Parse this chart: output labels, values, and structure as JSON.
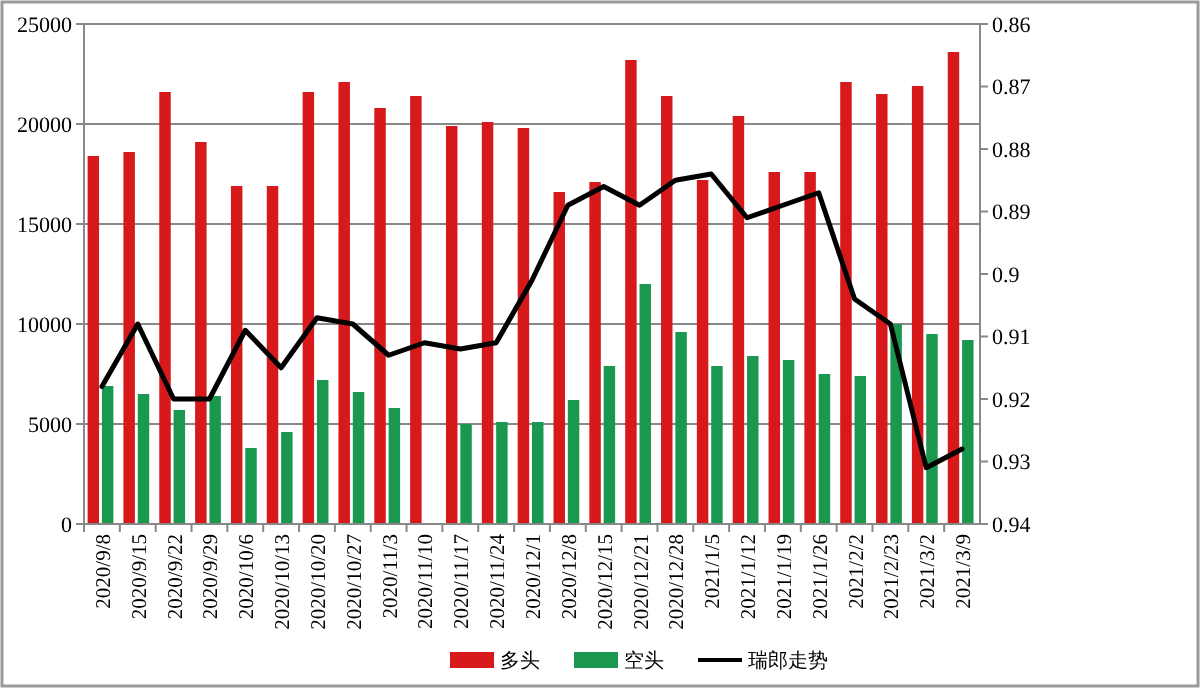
{
  "chart_data": {
    "type": "bar",
    "categories": [
      "2020/9/8",
      "2020/9/15",
      "2020/9/22",
      "2020/9/29",
      "2020/10/6",
      "2020/10/13",
      "2020/10/20",
      "2020/10/27",
      "2020/11/3",
      "2020/11/10",
      "2020/11/17",
      "2020/11/24",
      "2020/12/1",
      "2020/12/8",
      "2020/12/15",
      "2020/12/21",
      "2020/12/28",
      "2021/1/5",
      "2021/1/12",
      "2021/1/19",
      "2021/1/26",
      "2021/2/2",
      "2021/2/23",
      "2021/3/2",
      "2021/3/9"
    ],
    "series": [
      {
        "name": "多头",
        "color": "#d7191c",
        "values": [
          18400,
          18600,
          21600,
          19100,
          16900,
          16900,
          21600,
          22100,
          20800,
          21400,
          19900,
          20100,
          19800,
          16600,
          17100,
          23200,
          21400,
          17200,
          20400,
          17600,
          17600,
          22100,
          21500,
          21900,
          23600
        ]
      },
      {
        "name": "空头",
        "color": "#1a9850",
        "values": [
          6900,
          6500,
          5700,
          6400,
          3800,
          4600,
          7200,
          6600,
          5800,
          null,
          5000,
          5100,
          5100,
          6200,
          7900,
          12000,
          9600,
          7900,
          8400,
          8200,
          7500,
          7400,
          10000,
          9500,
          9200
        ]
      },
      {
        "name": "瑞郎走势",
        "type": "line",
        "axis": "y2",
        "color": "#000000",
        "values": [
          0.918,
          0.908,
          0.92,
          0.92,
          0.909,
          0.915,
          0.907,
          0.908,
          0.913,
          0.911,
          0.912,
          0.911,
          0.901,
          0.889,
          0.886,
          0.889,
          0.885,
          0.884,
          0.891,
          0.889,
          0.887,
          0.904,
          0.908,
          0.931,
          0.928
        ]
      }
    ],
    "ylim": [
      0,
      25000
    ],
    "yticks": [
      0,
      5000,
      10000,
      15000,
      20000,
      25000
    ],
    "y2lim": [
      0.94,
      0.86
    ],
    "y2ticks": [
      {
        "value": 0.94,
        "label": "0.94"
      },
      {
        "value": 0.93,
        "label": "0.93"
      },
      {
        "value": 0.92,
        "label": "0.92"
      },
      {
        "value": 0.91,
        "label": "0.91"
      },
      {
        "value": 0.9,
        "label": "0.9"
      },
      {
        "value": 0.89,
        "label": "0.89"
      },
      {
        "value": 0.88,
        "label": "0.88"
      },
      {
        "value": 0.87,
        "label": "0.87"
      },
      {
        "value": 0.86,
        "label": "0.86"
      }
    ],
    "grid": "y",
    "legend": "bottom",
    "marker": "none",
    "line_style": "solid"
  }
}
